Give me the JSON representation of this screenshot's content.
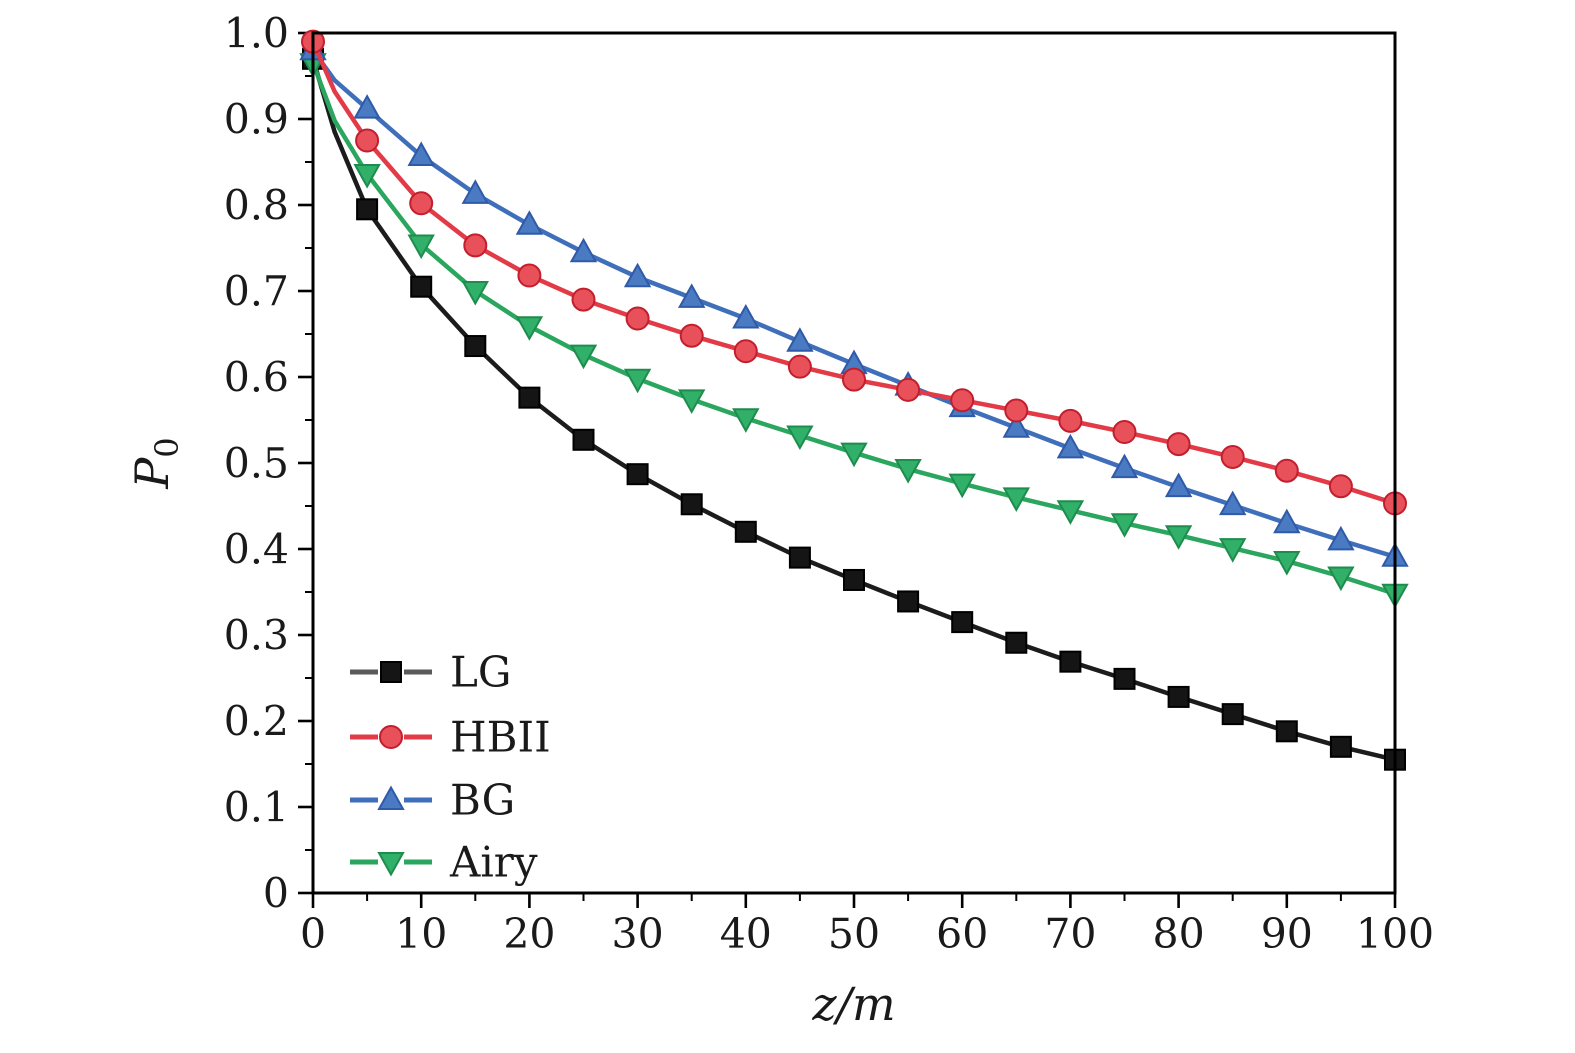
{
  "figure": {
    "background": "#ffffff",
    "axis_color": "#000000",
    "text_color": "#1a1a1a"
  },
  "chart_data": {
    "type": "line",
    "title": "",
    "xlabel": "z/m",
    "ylabel_main": "P",
    "ylabel_sub": "0",
    "xlim": [
      0,
      100
    ],
    "ylim": [
      0,
      1.0
    ],
    "grid": false,
    "legend_position": "lower-left",
    "xticks": {
      "values": [
        0,
        10,
        20,
        30,
        40,
        50,
        60,
        70,
        80,
        90,
        100
      ],
      "labels": [
        "0",
        "10",
        "20",
        "30",
        "40",
        "50",
        "60",
        "70",
        "80",
        "90",
        "100"
      ],
      "minor": [
        5,
        15,
        25,
        35,
        45,
        55,
        65,
        75,
        85,
        95
      ]
    },
    "yticks": {
      "values": [
        0,
        0.1,
        0.2,
        0.3,
        0.4,
        0.5,
        0.6,
        0.7,
        0.8,
        0.9,
        1.0
      ],
      "labels": [
        "0",
        "0.1",
        "0.2",
        "0.3",
        "0.4",
        "0.5",
        "0.6",
        "0.7",
        "0.8",
        "0.9",
        "1.0"
      ],
      "minor": [
        0.05,
        0.15,
        0.25,
        0.35,
        0.45,
        0.55,
        0.65,
        0.75,
        0.85,
        0.95
      ]
    },
    "x": [
      0,
      2,
      5,
      10,
      15,
      20,
      25,
      30,
      35,
      40,
      45,
      50,
      55,
      60,
      65,
      70,
      75,
      80,
      85,
      90,
      95,
      100
    ],
    "helper_point_indices": [
      1
    ],
    "series": [
      {
        "name": "LG",
        "marker": "square",
        "line_color": "#1c1c1c",
        "legend_line_color": "#5a5a5a",
        "marker_fill": "#151515",
        "marker_edge": "#000000",
        "values": [
          0.97,
          0.885,
          0.795,
          0.705,
          0.636,
          0.576,
          0.527,
          0.487,
          0.452,
          0.42,
          0.39,
          0.364,
          0.339,
          0.315,
          0.291,
          0.269,
          0.249,
          0.228,
          0.208,
          0.188,
          0.17,
          0.155
        ]
      },
      {
        "name": "HBII",
        "marker": "circle",
        "line_color": "#e23b47",
        "legend_line_color": "#e23b47",
        "marker_fill": "#e8505a",
        "marker_edge": "#c21f2e",
        "values": [
          0.99,
          0.932,
          0.875,
          0.802,
          0.753,
          0.718,
          0.69,
          0.668,
          0.648,
          0.63,
          0.612,
          0.597,
          0.585,
          0.573,
          0.561,
          0.549,
          0.536,
          0.522,
          0.507,
          0.491,
          0.473,
          0.453
        ]
      },
      {
        "name": "BG",
        "marker": "triangle-up",
        "line_color": "#3f6fba",
        "legend_line_color": "#3f6fba",
        "marker_fill": "#4a7ac2",
        "marker_edge": "#2f5aa8",
        "values": [
          0.98,
          0.945,
          0.912,
          0.857,
          0.813,
          0.777,
          0.745,
          0.716,
          0.692,
          0.668,
          0.641,
          0.615,
          0.59,
          0.565,
          0.541,
          0.517,
          0.494,
          0.472,
          0.451,
          0.43,
          0.41,
          0.391
        ]
      },
      {
        "name": "Airy",
        "marker": "triangle-down",
        "line_color": "#2aa65e",
        "legend_line_color": "#2aa65e",
        "marker_fill": "#31b06a",
        "marker_edge": "#1e8c4d",
        "values": [
          0.965,
          0.898,
          0.836,
          0.754,
          0.7,
          0.659,
          0.626,
          0.598,
          0.574,
          0.552,
          0.532,
          0.512,
          0.493,
          0.476,
          0.46,
          0.445,
          0.43,
          0.416,
          0.401,
          0.386,
          0.368,
          0.348
        ]
      }
    ],
    "draw_order": [
      0,
      3,
      2,
      1
    ]
  }
}
